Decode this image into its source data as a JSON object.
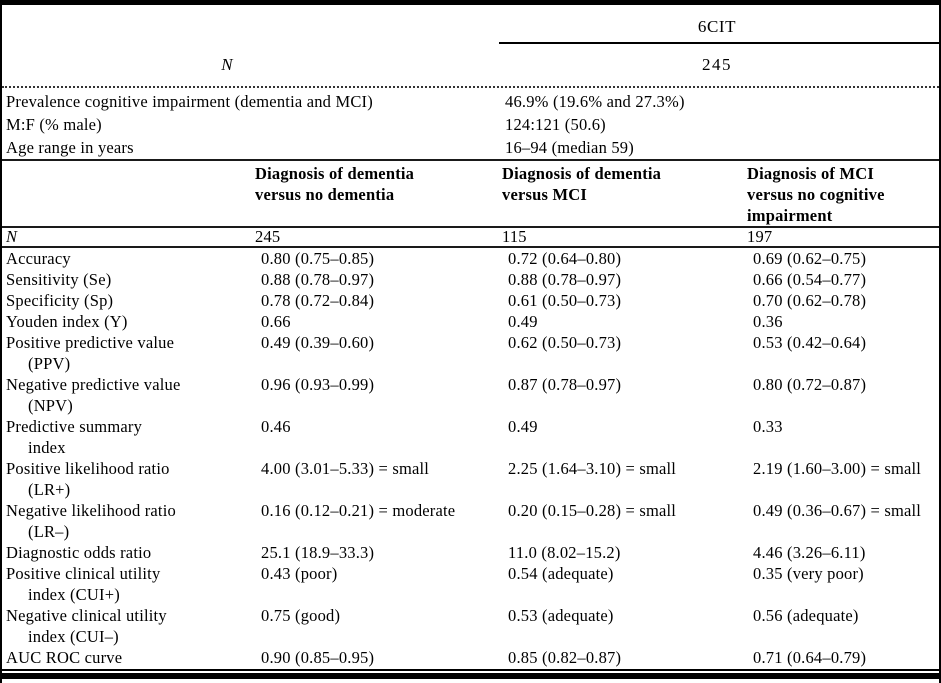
{
  "table": {
    "top": {
      "group_header": "6CIT",
      "n_label": "N",
      "n_value": "245"
    },
    "demographics": [
      {
        "label": "Prevalence cognitive impairment (dementia and MCI)",
        "value": "46.9% (19.6% and 27.3%)"
      },
      {
        "label": "M:F (% male)",
        "value": "124:121 (50.6)"
      },
      {
        "label": "Age range in years",
        "value": "16–94 (median 59)"
      }
    ],
    "columns": [
      {
        "lines": [
          "Diagnosis of dementia",
          "versus no dementia"
        ]
      },
      {
        "lines": [
          "Diagnosis of dementia",
          "versus MCI"
        ]
      },
      {
        "lines": [
          "Diagnosis of MCI",
          "versus no cognitive",
          "impairment"
        ]
      }
    ],
    "n_row": {
      "label": "N",
      "values": [
        "245",
        "115",
        "197"
      ]
    },
    "rows": [
      {
        "label_lines": [
          "Accuracy"
        ],
        "values": [
          "0.80 (0.75–0.85)",
          "0.72 (0.64–0.80)",
          "0.69 (0.62–0.75)"
        ]
      },
      {
        "label_lines": [
          "Sensitivity (Se)"
        ],
        "values": [
          "0.88 (0.78–0.97)",
          "0.88 (0.78–0.97)",
          "0.66 (0.54–0.77)"
        ]
      },
      {
        "label_lines": [
          "Specificity (Sp)"
        ],
        "values": [
          "0.78 (0.72–0.84)",
          "0.61 (0.50–0.73)",
          "0.70 (0.62–0.78)"
        ]
      },
      {
        "label_lines": [
          "Youden index (Y)"
        ],
        "values": [
          "0.66",
          "0.49",
          "0.36"
        ]
      },
      {
        "label_lines": [
          "Positive predictive value",
          "(PPV)"
        ],
        "values": [
          "0.49 (0.39–0.60)",
          "0.62 (0.50–0.73)",
          "0.53 (0.42–0.64)"
        ]
      },
      {
        "label_lines": [
          "Negative predictive value",
          "(NPV)"
        ],
        "values": [
          "0.96 (0.93–0.99)",
          "0.87 (0.78–0.97)",
          "0.80 (0.72–0.87)"
        ]
      },
      {
        "label_lines": [
          "Predictive summary",
          "index"
        ],
        "values": [
          "0.46",
          "0.49",
          "0.33"
        ]
      },
      {
        "label_lines": [
          "Positive likelihood ratio",
          "(LR+)"
        ],
        "values": [
          "4.00 (3.01–5.33) = small",
          "2.25 (1.64–3.10) = small",
          "2.19 (1.60–3.00) = small"
        ]
      },
      {
        "label_lines": [
          "Negative likelihood ratio",
          "(LR–)"
        ],
        "values": [
          "0.16 (0.12–0.21) = moderate",
          "0.20 (0.15–0.28) = small",
          "0.49 (0.36–0.67) = small"
        ]
      },
      {
        "label_lines": [
          "Diagnostic odds ratio"
        ],
        "values": [
          "25.1 (18.9–33.3)",
          "11.0 (8.02–15.2)",
          "4.46 (3.26–6.11)"
        ]
      },
      {
        "label_lines": [
          "Positive clinical utility",
          "index (CUI+)"
        ],
        "values": [
          "0.43 (poor)",
          "0.54 (adequate)",
          "0.35 (very poor)"
        ]
      },
      {
        "label_lines": [
          "Negative clinical utility",
          "index (CUI–)"
        ],
        "values": [
          "0.75 (good)",
          "0.53 (adequate)",
          "0.56 (adequate)"
        ]
      },
      {
        "label_lines": [
          "AUC ROC curve"
        ],
        "values": [
          "0.90 (0.85–0.95)",
          "0.85 (0.82–0.87)",
          "0.71 (0.64–0.79)"
        ]
      }
    ]
  }
}
